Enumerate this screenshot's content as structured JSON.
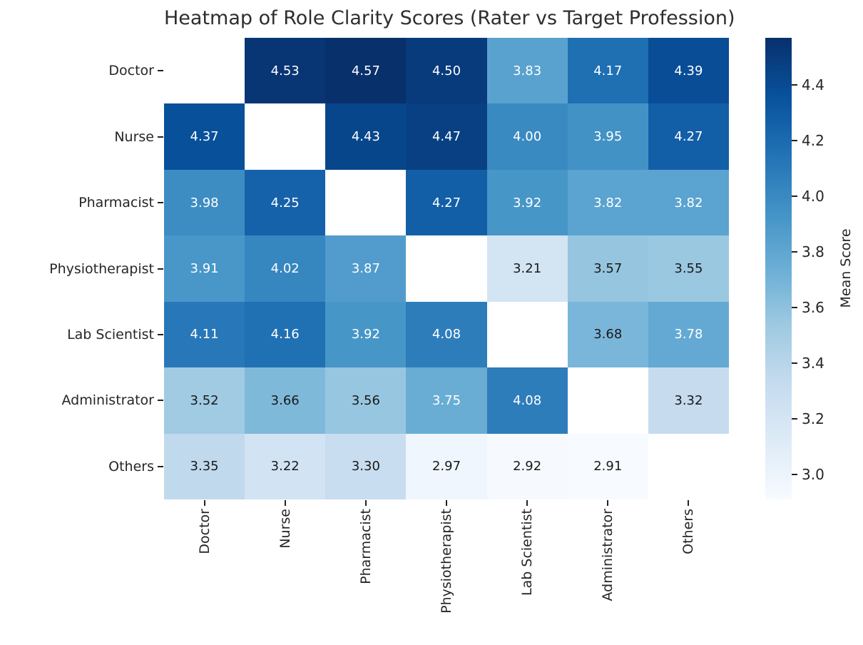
{
  "chart_data": {
    "type": "heatmap",
    "title": "Heatmap of Role Clarity Scores (Rater vs Target Profession)",
    "x_categories": [
      "Doctor",
      "Nurse",
      "Pharmacist",
      "Physiotherapist",
      "Lab Scientist",
      "Administrator",
      "Others"
    ],
    "y_categories": [
      "Doctor",
      "Nurse",
      "Pharmacist",
      "Physiotherapist",
      "Lab Scientist",
      "Administrator",
      "Others"
    ],
    "values": [
      [
        null,
        4.53,
        4.57,
        4.5,
        3.83,
        4.17,
        4.39
      ],
      [
        4.37,
        null,
        4.43,
        4.47,
        4.0,
        3.95,
        4.27
      ],
      [
        3.98,
        4.25,
        null,
        4.27,
        3.92,
        3.82,
        3.82
      ],
      [
        3.91,
        4.02,
        3.87,
        null,
        3.21,
        3.57,
        3.55
      ],
      [
        4.11,
        4.16,
        3.92,
        4.08,
        null,
        3.68,
        3.78
      ],
      [
        3.52,
        3.66,
        3.56,
        3.75,
        4.08,
        null,
        3.32
      ],
      [
        3.35,
        3.22,
        3.3,
        2.97,
        2.92,
        2.91,
        null
      ]
    ],
    "value_decimals": 2,
    "masked_cell_color": "#ffffff",
    "annotation_colors": {
      "light_text": "#ffffff",
      "dark_text": "#1a1a1a"
    },
    "colorbar": {
      "label": "Mean Score",
      "vmin": 2.91,
      "vmax": 4.57,
      "ticks": [
        3.0,
        3.2,
        3.4,
        3.6,
        3.8,
        4.0,
        4.2,
        4.4
      ],
      "tick_decimals": 1,
      "colormap": "Blues",
      "palette": [
        {
          "t": 0.0,
          "c": "#f7fbff"
        },
        {
          "t": 0.125,
          "c": "#deebf7"
        },
        {
          "t": 0.25,
          "c": "#c6dbef"
        },
        {
          "t": 0.375,
          "c": "#9ecae1"
        },
        {
          "t": 0.5,
          "c": "#6baed6"
        },
        {
          "t": 0.625,
          "c": "#4292c6"
        },
        {
          "t": 0.75,
          "c": "#2171b5"
        },
        {
          "t": 0.875,
          "c": "#08519c"
        },
        {
          "t": 1.0,
          "c": "#08306b"
        }
      ]
    }
  }
}
